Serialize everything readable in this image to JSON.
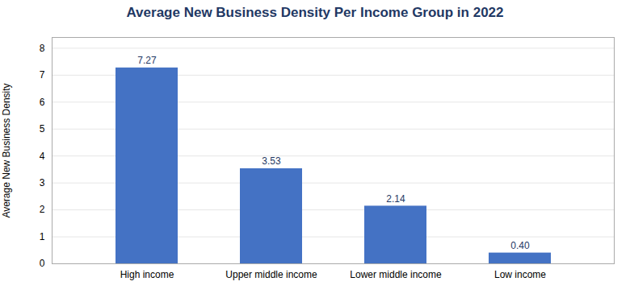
{
  "chart_data": {
    "type": "bar",
    "title": "Average New Business Density Per Income Group in 2022",
    "categories": [
      "High income",
      "Upper middle income",
      "Lower middle income",
      "Low income"
    ],
    "values": [
      7.27,
      3.53,
      2.14,
      0.4
    ],
    "value_labels": [
      "7.27",
      "3.53",
      "2.14",
      "0.40"
    ],
    "color": "#4472C4",
    "ylabel": "Average New Business Density",
    "ylim": [
      0,
      8.4
    ],
    "yticks": [
      0,
      1,
      2,
      3,
      4,
      5,
      6,
      7,
      8
    ],
    "grid": true,
    "data_labels": true
  }
}
